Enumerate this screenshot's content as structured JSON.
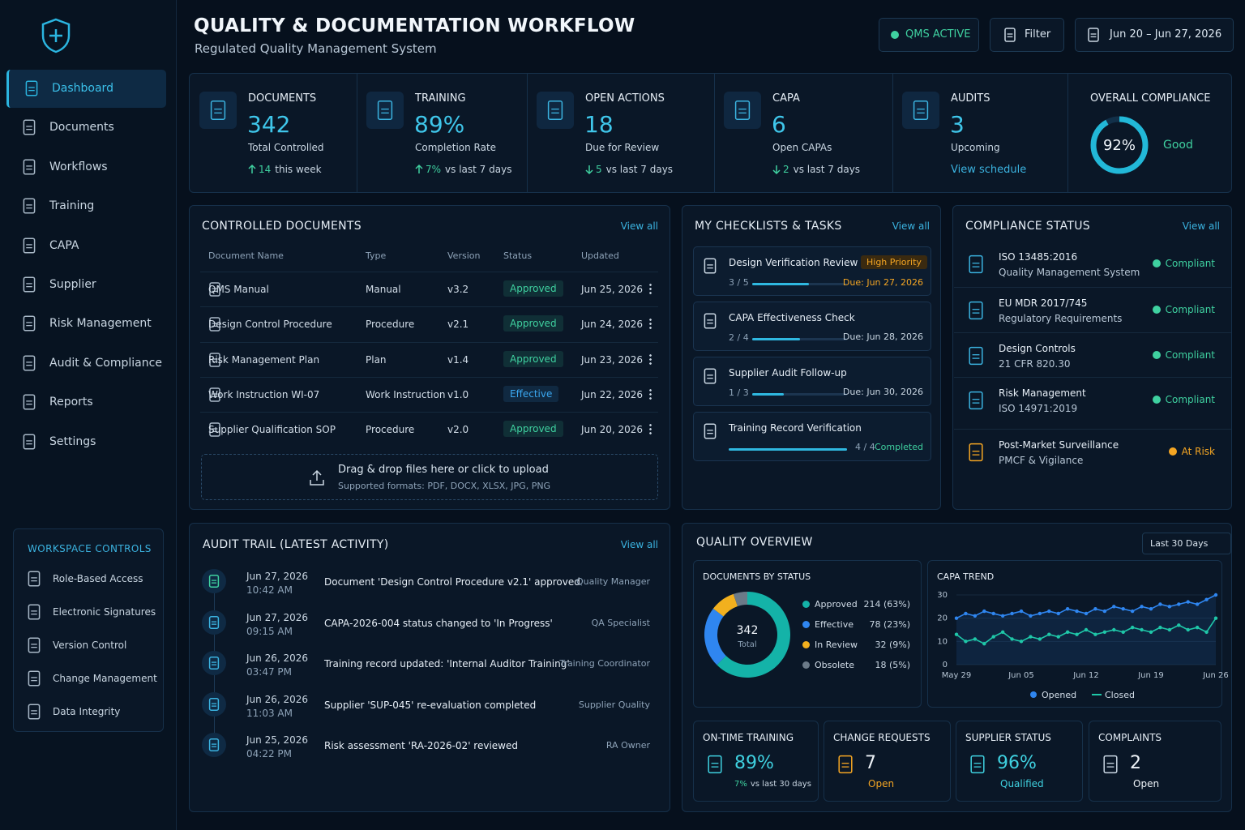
{
  "sidebar": {
    "nav": [
      "Dashboard",
      "Documents",
      "Workflows",
      "Training",
      "CAPA",
      "Supplier",
      "Risk Management",
      "Audit & Compliance",
      "Reports",
      "Settings"
    ],
    "workspace_controls": {
      "title": "WORKSPACE CONTROLS",
      "items": [
        "Role-Based Access",
        "Electronic Signatures",
        "Version Control",
        "Change Management",
        "Data Integrity"
      ]
    }
  },
  "header": {
    "title": "QUALITY & DOCUMENTATION WORKFLOW",
    "subtitle": "Regulated Quality Management System",
    "status": "QMS ACTIVE",
    "filter": "Filter",
    "date_range": "Jun 20 – Jun 27, 2026"
  },
  "kpis": [
    {
      "label": "DOCUMENTS",
      "value": "342",
      "caption": "Total Controlled",
      "delta": "14",
      "delta_text": "this week",
      "direction": "up"
    },
    {
      "label": "TRAINING",
      "value": "89%",
      "caption": "Completion Rate",
      "delta": "7%",
      "delta_text": "vs last 7 days",
      "direction": "up"
    },
    {
      "label": "OPEN ACTIONS",
      "value": "18",
      "caption": "Due for Review",
      "delta": "5",
      "delta_text": "vs last 7 days",
      "direction": "down"
    },
    {
      "label": "CAPA",
      "value": "6",
      "caption": "Open CAPAs",
      "delta": "2",
      "delta_text": "vs last 7 days",
      "direction": "down"
    },
    {
      "label": "AUDITS",
      "value": "3",
      "caption": "Upcoming",
      "link": "View schedule"
    }
  ],
  "overall_compliance": {
    "label": "OVERALL COMPLIANCE",
    "value": 92,
    "value_label": "92%",
    "status": "Good"
  },
  "controlled_documents": {
    "title": "CONTROLLED DOCUMENTS",
    "view_all": "View all",
    "columns": [
      "Document Name",
      "Type",
      "Version",
      "Status",
      "Updated"
    ],
    "rows": [
      [
        "QMS Manual",
        "Manual",
        "v3.2",
        "Approved",
        "Jun 25, 2026"
      ],
      [
        "Design Control Procedure",
        "Procedure",
        "v2.1",
        "Approved",
        "Jun 24, 2026"
      ],
      [
        "Risk Management Plan",
        "Plan",
        "v1.4",
        "Approved",
        "Jun 23, 2026"
      ],
      [
        "Work Instruction WI-07",
        "Work Instruction",
        "v1.0",
        "Effective",
        "Jun 22, 2026"
      ],
      [
        "Supplier Qualification SOP",
        "Procedure",
        "v2.0",
        "Approved",
        "Jun 20, 2026"
      ]
    ],
    "status_colors": [
      "#3fd1a0",
      "#3fd1a0",
      "#3fd1a0",
      "#3aa7f0",
      "#3fd1a0"
    ],
    "upload": {
      "text": "Drag & drop files here or click to upload",
      "formats": "Supported formats: PDF, DOCX, XLSX, JPG, PNG"
    }
  },
  "checklists": {
    "title": "MY CHECKLISTS & TASKS",
    "view_all": "View all",
    "tasks": [
      {
        "title": "Design Verification Review",
        "badge": "High Priority",
        "progress": {
          "done": 3,
          "total": 5,
          "label": "3 / 5"
        },
        "due": "Due: Jun 27, 2026",
        "color": "#f5a623"
      },
      {
        "title": "CAPA Effectiveness Check",
        "progress": {
          "done": 2,
          "total": 4,
          "label": "2 / 4"
        },
        "due": "Due: Jun 28, 2026",
        "color": "#c9d6e2"
      },
      {
        "title": "Supplier Audit Follow-up",
        "progress": {
          "done": 1,
          "total": 3,
          "label": "1 / 3"
        },
        "due": "Due: Jun 30, 2026",
        "color": "#c9d6e2"
      },
      {
        "title": "Training Record Verification",
        "progress": {
          "done": 4,
          "total": 4,
          "label": "4 / 4"
        },
        "due": "Completed",
        "color": "#3fd1a0"
      }
    ]
  },
  "compliance_status": {
    "title": "COMPLIANCE STATUS",
    "view_all": "View all",
    "items": [
      {
        "name": "ISO 13485:2016",
        "detail": "Quality Management System",
        "status": "Compliant",
        "color": "#3fd1a0"
      },
      {
        "name": "EU MDR 2017/745",
        "detail": "Regulatory Requirements",
        "status": "Compliant",
        "color": "#3fd1a0"
      },
      {
        "name": "Design Controls",
        "detail": "21 CFR 820.30",
        "status": "Compliant",
        "color": "#3fd1a0"
      },
      {
        "name": "Risk Management",
        "detail": "ISO 14971:2019",
        "status": "Compliant",
        "color": "#3fd1a0"
      },
      {
        "name": "Post-Market Surveillance",
        "detail": "PMCF & Vigilance",
        "status": "At Risk",
        "color": "#f5a623"
      }
    ]
  },
  "audit_trail": {
    "title": "AUDIT TRAIL (LATEST ACTIVITY)",
    "view_all": "View all",
    "events": [
      {
        "date": "Jun 27, 2026",
        "time": "10:42 AM",
        "text": "Document 'Design Control Procedure v2.1' approved",
        "actor": "Quality Manager"
      },
      {
        "date": "Jun 27, 2026",
        "time": "09:15 AM",
        "text": "CAPA-2026-004 status changed to 'In Progress'",
        "actor": "QA Specialist"
      },
      {
        "date": "Jun 26, 2026",
        "time": "03:47 PM",
        "text": "Training record updated: 'Internal Auditor Training'",
        "actor": "Training Coordinator"
      },
      {
        "date": "Jun 26, 2026",
        "time": "11:03 AM",
        "text": "Supplier 'SUP-045' re-evaluation completed",
        "actor": "Supplier Quality"
      },
      {
        "date": "Jun 25, 2026",
        "time": "04:22 PM",
        "text": "Risk assessment 'RA-2026-02' reviewed",
        "actor": "RA Owner"
      }
    ]
  },
  "quality_overview": {
    "title": "QUALITY OVERVIEW",
    "range": "Last 30 Days",
    "documents_by_status": {
      "type": "pie",
      "title": "DOCUMENTS BY STATUS",
      "total": "342",
      "total_label": "Total",
      "categories": [
        "Approved",
        "Effective",
        "In Review",
        "Obsolete"
      ],
      "values": [
        214,
        78,
        32,
        18
      ],
      "value_labels": [
        "214 (63%)",
        "78 (23%)",
        "32 (9%)",
        "18 (5%)"
      ],
      "colors": [
        "#14b3a8",
        "#2f86f0",
        "#f2b01e",
        "#6b7a88"
      ]
    },
    "capa_trend": {
      "type": "line",
      "title": "CAPA TREND",
      "categories": [
        "May 29",
        null,
        null,
        null,
        null,
        null,
        null,
        "Jun 05",
        null,
        null,
        null,
        null,
        null,
        null,
        "Jun 12",
        null,
        null,
        null,
        null,
        null,
        null,
        "Jun 19",
        null,
        null,
        null,
        null,
        null,
        null,
        "Jun 26"
      ],
      "ylim": [
        0,
        30
      ],
      "yticks": [
        0,
        10,
        20,
        30
      ],
      "series": [
        {
          "name": "Opened",
          "color": "#2f86f0",
          "values": [
            20,
            22,
            21,
            23,
            22,
            21,
            22,
            23,
            21,
            22,
            23,
            22,
            24,
            23,
            22,
            24,
            23,
            25,
            24,
            23,
            25,
            24,
            26,
            25,
            26,
            27,
            26,
            28,
            30
          ]
        },
        {
          "name": "Closed",
          "color": "#1fc7a8",
          "values": [
            13,
            10,
            11,
            9,
            12,
            14,
            11,
            10,
            12,
            11,
            13,
            12,
            14,
            13,
            15,
            13,
            14,
            15,
            14,
            16,
            15,
            14,
            16,
            15,
            17,
            15,
            16,
            14,
            20
          ]
        }
      ]
    },
    "stats": [
      {
        "label": "ON-TIME TRAINING",
        "value": "89%",
        "delta": "7%",
        "delta_text": "vs last 30 days",
        "color": "#3fd1e0"
      },
      {
        "label": "CHANGE REQUESTS",
        "value": "7",
        "caption": "Open",
        "color": "#f5a623"
      },
      {
        "label": "SUPPLIER STATUS",
        "value": "96%",
        "caption": "Qualified",
        "color": "#3fd1e0"
      },
      {
        "label": "COMPLAINTS",
        "value": "2",
        "caption": "Open",
        "color": "#c9d6e2"
      }
    ]
  }
}
